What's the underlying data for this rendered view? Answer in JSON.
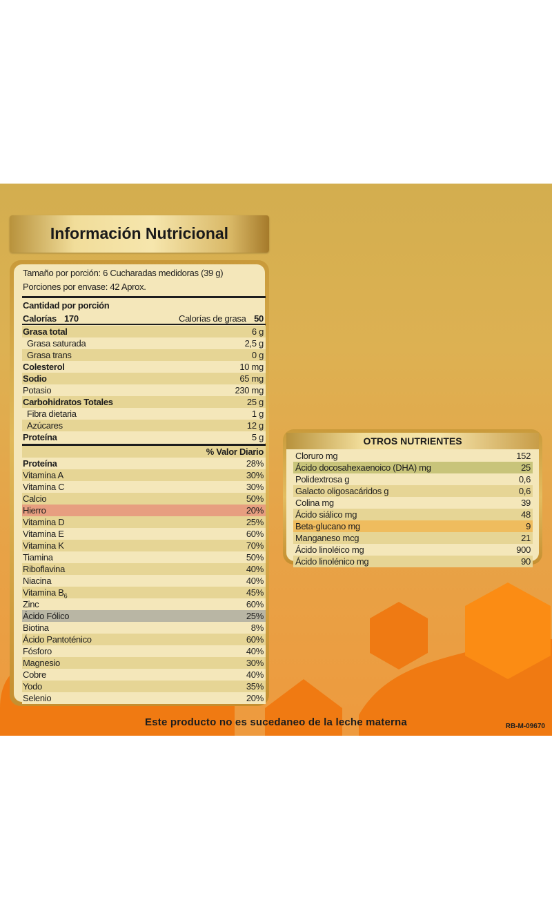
{
  "title": "Información Nutricional",
  "serving": {
    "size": "Tamaño por porción: 6 Cucharadas medidoras (39 g)",
    "per_container": "Porciones por envase: 42 Aprox."
  },
  "amount_header": "Cantidad por porción",
  "calories": {
    "label": "Calorías",
    "value": "170",
    "fat_label": "Calorías de grasa",
    "fat_value": "50"
  },
  "nutrients": [
    {
      "label": "Grasa total",
      "value": "6 g",
      "bold": true,
      "indent": false
    },
    {
      "label": "Grasa saturada",
      "value": "2,5 g",
      "bold": false,
      "indent": true
    },
    {
      "label": "Grasa trans",
      "value": "0 g",
      "bold": false,
      "indent": true
    },
    {
      "label": "Colesterol",
      "value": "10 mg",
      "bold": true,
      "indent": false
    },
    {
      "label": "Sodio",
      "value": "65 mg",
      "bold": true,
      "indent": false
    },
    {
      "label": "Potasio",
      "value": "230 mg",
      "bold": false,
      "indent": false
    },
    {
      "label": "Carbohidratos Totales",
      "value": "25 g",
      "bold": true,
      "indent": false
    },
    {
      "label": "Fibra dietaria",
      "value": "1 g",
      "bold": false,
      "indent": true
    },
    {
      "label": "Azúcares",
      "value": "12 g",
      "bold": false,
      "indent": true
    },
    {
      "label": "Proteína",
      "value": "5 g",
      "bold": true,
      "indent": false
    }
  ],
  "dv_header": "% Valor Diario",
  "daily_values": [
    {
      "label": "Proteína",
      "value": "28%",
      "bold": true,
      "highlight": ""
    },
    {
      "label": "Vitamina A",
      "value": "30%",
      "bold": false,
      "highlight": ""
    },
    {
      "label": "Vitamina C",
      "value": "30%",
      "bold": false,
      "highlight": ""
    },
    {
      "label": "Calcio",
      "value": "50%",
      "bold": false,
      "highlight": ""
    },
    {
      "label": "Hierro",
      "value": "20%",
      "bold": false,
      "highlight": "#e79e80"
    },
    {
      "label": "Vitamina D",
      "value": "25%",
      "bold": false,
      "highlight": ""
    },
    {
      "label": "Vitamina E",
      "value": "60%",
      "bold": false,
      "highlight": ""
    },
    {
      "label": "Vitamina K",
      "value": "70%",
      "bold": false,
      "highlight": ""
    },
    {
      "label": "Tiamina",
      "value": "50%",
      "bold": false,
      "highlight": ""
    },
    {
      "label": "Riboflavina",
      "value": "40%",
      "bold": false,
      "highlight": ""
    },
    {
      "label": "Niacina",
      "value": "40%",
      "bold": false,
      "highlight": ""
    },
    {
      "label": "Vitamina B",
      "sub": "6",
      "value": "45%",
      "bold": false,
      "highlight": ""
    },
    {
      "label": "Zinc",
      "value": "60%",
      "bold": false,
      "highlight": ""
    },
    {
      "label": "Ácido Fólico",
      "value": "25%",
      "bold": false,
      "highlight": "#b9b6a4"
    },
    {
      "label": "Biotina",
      "value": "8%",
      "bold": false,
      "highlight": ""
    },
    {
      "label": "Ácido Pantoténico",
      "value": "60%",
      "bold": false,
      "highlight": ""
    },
    {
      "label": "Fósforo",
      "value": "40%",
      "bold": false,
      "highlight": ""
    },
    {
      "label": "Magnesio",
      "value": "30%",
      "bold": false,
      "highlight": ""
    },
    {
      "label": "Cobre",
      "value": "40%",
      "bold": false,
      "highlight": ""
    },
    {
      "label": "Yodo",
      "value": "35%",
      "bold": false,
      "highlight": ""
    },
    {
      "label": "Selenio",
      "value": "20%",
      "bold": false,
      "highlight": ""
    }
  ],
  "others": {
    "title": "OTROS NUTRIENTES",
    "rows": [
      {
        "label": "Cloruro mg",
        "value": "152",
        "highlight": ""
      },
      {
        "label": "Ácido docosahexaenoico (DHA) mg",
        "value": "25",
        "highlight": "#c8c47a"
      },
      {
        "label": "Polidextrosa g",
        "value": "0,6",
        "highlight": ""
      },
      {
        "label": "Galacto oligosacáridos g",
        "value": "0,6",
        "highlight": ""
      },
      {
        "label": "Colina mg",
        "value": "39",
        "highlight": ""
      },
      {
        "label": "Ácido siálico mg",
        "value": "48",
        "highlight": ""
      },
      {
        "label": "Beta-glucano mg",
        "value": "9",
        "highlight": "#efbc5e"
      },
      {
        "label": "Manganeso mcg",
        "value": "21",
        "highlight": ""
      },
      {
        "label": "Ácido linoléico mg",
        "value": "900",
        "highlight": ""
      },
      {
        "label": "Ácido linolénico mg",
        "value": "90",
        "highlight": ""
      }
    ]
  },
  "disclaimer": "Este producto no es sucedaneo de la leche materna",
  "code": "RB-M-09670",
  "colors": {
    "stripe_light": "#f4e7ba",
    "stripe_dark": "#e6d595",
    "accent_orange": "#f07a12",
    "gold": "#d3ae4f"
  }
}
